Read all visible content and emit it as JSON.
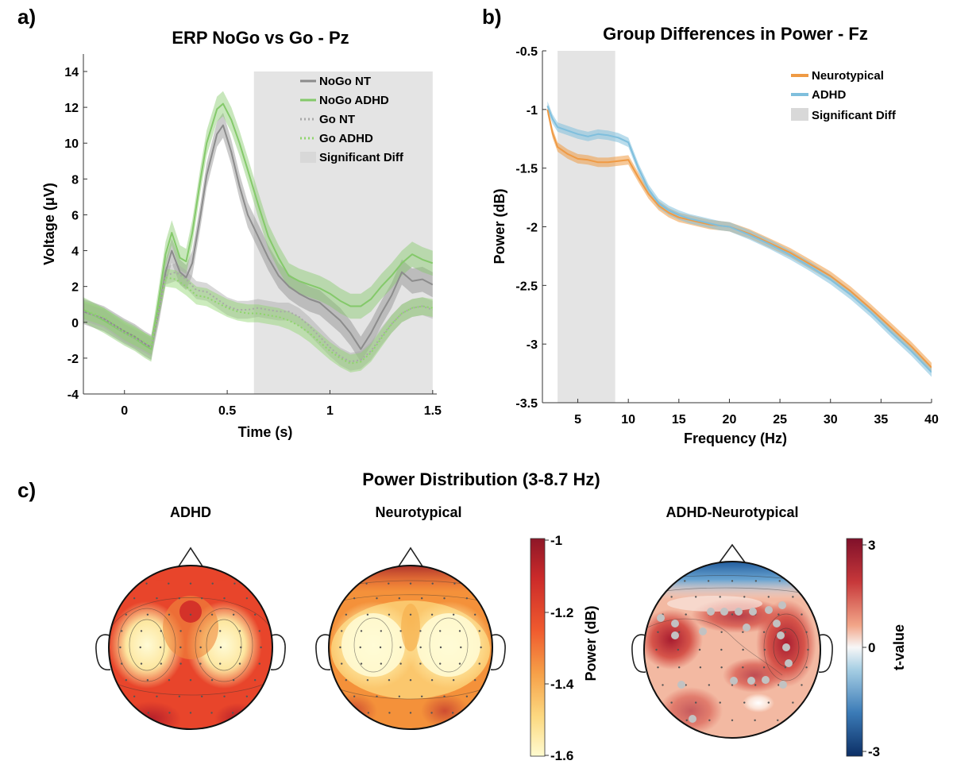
{
  "colors": {
    "nogo_nt": "#8c8c8c",
    "nogo_adhd": "#84c96a",
    "go_nt": "#a8a8a8",
    "go_adhd": "#8fd56c",
    "shade": "#e4e4e4",
    "neurotypical": "#ef9a44",
    "adhd": "#7fbfdd",
    "sig_electrode": "#c2c2c2"
  },
  "panel_a": {
    "letter": "a)",
    "chart_data": {
      "type": "line",
      "title": "ERP NoGo vs Go - Pz",
      "xlabel": "Time (s)",
      "ylabel": "Voltage (μV)",
      "xlim": [
        -0.2,
        1.52
      ],
      "ylim": [
        -4,
        14
      ],
      "xticks": [
        0,
        0.5,
        1,
        1.5
      ],
      "xtick_labels": [
        "0",
        "0.5",
        "1",
        "1.5"
      ],
      "yticks": [
        -4,
        -2,
        0,
        2,
        4,
        6,
        8,
        10,
        12,
        14
      ],
      "significant_region": [
        0.63,
        1.5
      ],
      "series": [
        {
          "key": "nogo_nt",
          "name": "NoGo NT",
          "style": "solid",
          "x": [
            -0.2,
            -0.1,
            0,
            0.05,
            0.1,
            0.13,
            0.17,
            0.2,
            0.23,
            0.27,
            0.3,
            0.33,
            0.37,
            0.4,
            0.45,
            0.48,
            0.52,
            0.56,
            0.6,
            0.65,
            0.7,
            0.75,
            0.8,
            0.85,
            0.9,
            0.95,
            1.0,
            1.05,
            1.1,
            1.15,
            1.2,
            1.25,
            1.3,
            1.35,
            1.4,
            1.45,
            1.5
          ],
          "y": [
            0.6,
            0.2,
            -0.5,
            -0.8,
            -1.2,
            -1.4,
            0.8,
            2.8,
            4.0,
            2.8,
            2.5,
            3.3,
            6.0,
            8.2,
            10.5,
            11.0,
            9.5,
            7.6,
            6.0,
            4.8,
            3.6,
            2.6,
            2.0,
            1.6,
            1.3,
            1.1,
            0.6,
            0.1,
            -0.6,
            -1.5,
            -0.6,
            0.5,
            1.5,
            2.8,
            2.3,
            2.4,
            2.1
          ],
          "band": 0.7
        },
        {
          "key": "nogo_adhd",
          "name": "NoGo ADHD",
          "style": "solid",
          "x": [
            -0.2,
            -0.1,
            0,
            0.05,
            0.1,
            0.13,
            0.17,
            0.2,
            0.23,
            0.27,
            0.3,
            0.33,
            0.37,
            0.4,
            0.45,
            0.48,
            0.52,
            0.56,
            0.6,
            0.65,
            0.7,
            0.75,
            0.8,
            0.85,
            0.9,
            0.95,
            1.0,
            1.05,
            1.1,
            1.15,
            1.2,
            1.25,
            1.3,
            1.35,
            1.4,
            1.45,
            1.5
          ],
          "y": [
            0.7,
            0.1,
            -0.6,
            -0.9,
            -1.3,
            -1.5,
            1.5,
            3.8,
            5.0,
            3.6,
            3.4,
            5.0,
            8.0,
            10.0,
            11.9,
            12.2,
            11.3,
            10.0,
            8.5,
            6.6,
            4.8,
            3.6,
            2.6,
            2.3,
            2.1,
            1.9,
            1.6,
            1.2,
            0.9,
            0.9,
            1.3,
            2.0,
            2.6,
            3.3,
            3.8,
            3.5,
            3.3
          ],
          "band": 0.7
        },
        {
          "key": "go_nt",
          "name": "Go NT",
          "style": "dotted",
          "x": [
            -0.2,
            -0.1,
            0,
            0.05,
            0.1,
            0.13,
            0.17,
            0.2,
            0.25,
            0.3,
            0.35,
            0.4,
            0.45,
            0.5,
            0.55,
            0.6,
            0.65,
            0.7,
            0.75,
            0.8,
            0.85,
            0.9,
            0.95,
            1.0,
            1.05,
            1.1,
            1.15,
            1.2,
            1.25,
            1.3,
            1.35,
            1.4,
            1.45,
            1.5
          ],
          "y": [
            0.6,
            0.2,
            -0.6,
            -0.9,
            -1.2,
            -1.4,
            0.8,
            2.6,
            2.8,
            2.4,
            1.8,
            1.7,
            1.3,
            0.9,
            0.7,
            0.7,
            0.8,
            0.7,
            0.6,
            0.6,
            0.3,
            -0.2,
            -0.8,
            -1.4,
            -1.9,
            -2.2,
            -2.1,
            -1.6,
            -0.8,
            -0.1,
            0.5,
            0.8,
            0.9,
            0.7
          ],
          "band": 0.5
        },
        {
          "key": "go_adhd",
          "name": "Go ADHD",
          "style": "dotted",
          "x": [
            -0.2,
            -0.1,
            0,
            0.05,
            0.1,
            0.13,
            0.17,
            0.2,
            0.25,
            0.3,
            0.35,
            0.4,
            0.45,
            0.5,
            0.55,
            0.6,
            0.65,
            0.7,
            0.75,
            0.8,
            0.85,
            0.9,
            0.95,
            1.0,
            1.05,
            1.1,
            1.15,
            1.2,
            1.25,
            1.3,
            1.35,
            1.4,
            1.45,
            1.5
          ],
          "y": [
            0.7,
            0.3,
            -0.5,
            -0.8,
            -1.1,
            -1.3,
            0.9,
            2.5,
            2.4,
            2.0,
            1.5,
            1.4,
            1.1,
            0.8,
            0.6,
            0.5,
            0.5,
            0.4,
            0.3,
            0.1,
            -0.2,
            -0.6,
            -1.1,
            -1.6,
            -2.0,
            -2.3,
            -2.2,
            -1.7,
            -0.9,
            -0.1,
            0.5,
            0.8,
            0.9,
            0.8
          ],
          "band": 0.5
        }
      ],
      "legend": [
        "NoGo NT",
        "NoGo ADHD",
        "Go NT",
        "Go ADHD",
        "Significant Diff"
      ],
      "legend_position": "top-right"
    }
  },
  "panel_b": {
    "letter": "b)",
    "chart_data": {
      "type": "line",
      "title": "Group Differences in Power - Fz",
      "xlabel": "Frequency (Hz)",
      "ylabel": "Power (dB)",
      "xlim": [
        1.5,
        40
      ],
      "ylim": [
        -3.5,
        -0.5
      ],
      "y_reversed": true,
      "xticks": [
        5,
        10,
        15,
        20,
        25,
        30,
        35,
        40
      ],
      "yticks": [
        -0.5,
        -1,
        -1.5,
        -2,
        -2.5,
        -3,
        -3.5
      ],
      "ytick_labels": [
        "-0.5",
        "-1",
        "-1.5",
        "-2",
        "-2.5",
        "-3",
        "-3.5"
      ],
      "significant_region": [
        3,
        8.7
      ],
      "series": [
        {
          "key": "neurotypical",
          "name": "Neurotypical",
          "x": [
            2,
            2.5,
            3,
            4,
            5,
            6,
            7,
            8,
            9,
            10,
            11,
            12,
            13,
            14,
            15,
            16,
            17,
            18,
            19,
            20,
            22,
            24,
            26,
            28,
            30,
            32,
            34,
            36,
            38,
            40
          ],
          "y": [
            -1.0,
            -1.2,
            -1.32,
            -1.38,
            -1.42,
            -1.43,
            -1.45,
            -1.45,
            -1.44,
            -1.43,
            -1.58,
            -1.72,
            -1.82,
            -1.88,
            -1.92,
            -1.94,
            -1.96,
            -1.98,
            -1.99,
            -2.0,
            -2.06,
            -2.14,
            -2.22,
            -2.32,
            -2.42,
            -2.55,
            -2.7,
            -2.86,
            -3.02,
            -3.2
          ],
          "band": 0.04
        },
        {
          "key": "adhd",
          "name": "ADHD",
          "x": [
            2,
            2.5,
            3,
            4,
            5,
            6,
            7,
            8,
            9,
            10,
            11,
            12,
            13,
            14,
            15,
            16,
            17,
            18,
            19,
            20,
            22,
            24,
            26,
            28,
            30,
            32,
            34,
            36,
            38,
            40
          ],
          "y": [
            -0.97,
            -1.08,
            -1.15,
            -1.18,
            -1.21,
            -1.23,
            -1.21,
            -1.22,
            -1.24,
            -1.28,
            -1.5,
            -1.68,
            -1.8,
            -1.86,
            -1.9,
            -1.93,
            -1.95,
            -1.97,
            -1.99,
            -2.0,
            -2.07,
            -2.15,
            -2.24,
            -2.34,
            -2.45,
            -2.58,
            -2.73,
            -2.9,
            -3.06,
            -3.24
          ],
          "band": 0.04
        }
      ],
      "legend": [
        "Neurotypical",
        "ADHD",
        "Significant Diff"
      ],
      "legend_position": "top-right"
    }
  },
  "panel_c": {
    "letter": "c)",
    "title": "Power Distribution (3-8.7 Hz)",
    "maps": [
      {
        "title": "ADHD"
      },
      {
        "title": "Neurotypical"
      },
      {
        "title": "ADHD-Neurotypical"
      }
    ],
    "colorbar_power": {
      "label": "Power (dB)",
      "ticks": [
        "-1",
        "-1.2",
        "-1.4",
        "-1.6"
      ],
      "range": [
        -1.6,
        -1
      ]
    },
    "colorbar_t": {
      "label": "t-value",
      "ticks": [
        "3",
        "0",
        "-3"
      ],
      "range": [
        -3,
        3
      ]
    }
  }
}
